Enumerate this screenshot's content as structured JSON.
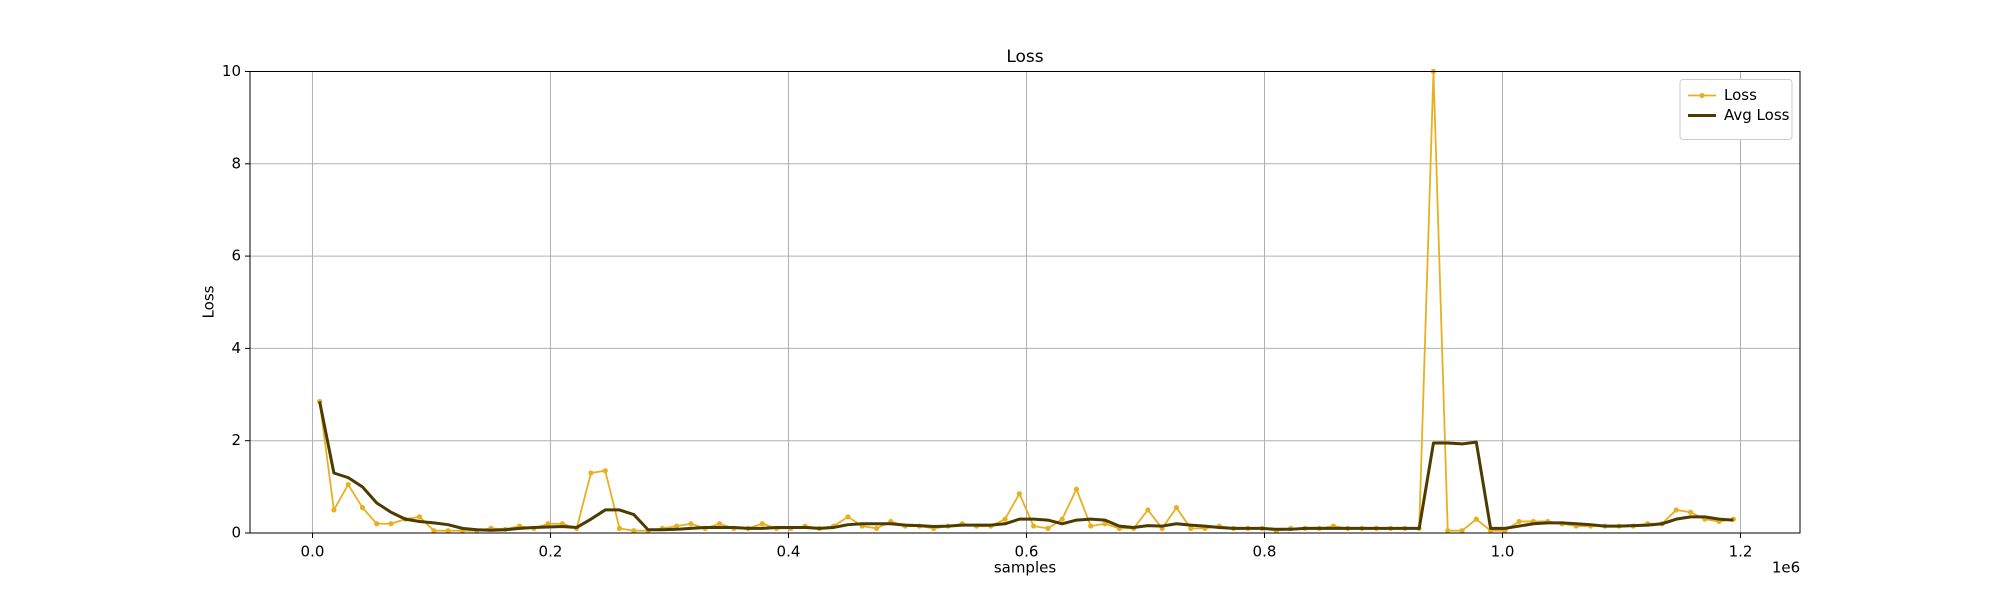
{
  "chart_data": {
    "type": "line",
    "title": "Loss",
    "x_label": "samples",
    "y_label": "Loss",
    "x_offset_label": "1e6",
    "x": [
      6000,
      18000,
      30000,
      42000,
      54000,
      66000,
      78000,
      90000,
      102000,
      114000,
      126000,
      138000,
      150000,
      162000,
      174000,
      186000,
      198000,
      210000,
      222000,
      234000,
      246000,
      258000,
      270000,
      282000,
      294000,
      306000,
      318000,
      330000,
      342000,
      354000,
      366000,
      378000,
      390000,
      402000,
      414000,
      426000,
      438000,
      450000,
      462000,
      474000,
      486000,
      498000,
      510000,
      522000,
      534000,
      546000,
      558000,
      570000,
      582000,
      594000,
      606000,
      618000,
      630000,
      642000,
      654000,
      666000,
      678000,
      690000,
      702000,
      714000,
      726000,
      738000,
      750000,
      762000,
      774000,
      786000,
      798000,
      810000,
      822000,
      834000,
      846000,
      858000,
      870000,
      882000,
      894000,
      906000,
      918000,
      930000,
      942000,
      954000,
      966000,
      978000,
      990000,
      1002000,
      1014000,
      1026000,
      1038000,
      1050000,
      1062000,
      1074000,
      1086000,
      1098000,
      1110000,
      1122000,
      1134000,
      1146000,
      1158000,
      1170000,
      1182000,
      1194000
    ],
    "series": [
      {
        "name": "Loss",
        "color": "#e8b020",
        "marker": true,
        "values": [
          2.85,
          0.5,
          1.05,
          0.55,
          0.2,
          0.2,
          0.3,
          0.35,
          0.05,
          0.05,
          0.05,
          0.05,
          0.1,
          0.08,
          0.15,
          0.1,
          0.2,
          0.2,
          0.1,
          1.3,
          1.35,
          0.1,
          0.05,
          0.05,
          0.1,
          0.15,
          0.2,
          0.1,
          0.2,
          0.1,
          0.1,
          0.2,
          0.1,
          0.1,
          0.15,
          0.1,
          0.15,
          0.35,
          0.15,
          0.1,
          0.25,
          0.15,
          0.15,
          0.1,
          0.15,
          0.2,
          0.15,
          0.15,
          0.3,
          0.85,
          0.15,
          0.1,
          0.3,
          0.95,
          0.15,
          0.2,
          0.1,
          0.1,
          0.5,
          0.1,
          0.55,
          0.1,
          0.1,
          0.15,
          0.1,
          0.1,
          0.1,
          0.05,
          0.1,
          0.1,
          0.1,
          0.15,
          0.1,
          0.1,
          0.1,
          0.1,
          0.1,
          0.1,
          10,
          0.05,
          0.05,
          0.3,
          0.05,
          0.05,
          0.25,
          0.25,
          0.25,
          0.2,
          0.15,
          0.15,
          0.15,
          0.15,
          0.15,
          0.2,
          0.2,
          0.5,
          0.45,
          0.3,
          0.25,
          0.3
        ]
      },
      {
        "name": "Avg Loss",
        "color": "#4d3b00",
        "marker": false,
        "values": [
          2.85,
          1.3,
          1.2,
          1.0,
          0.65,
          0.45,
          0.3,
          0.25,
          0.22,
          0.18,
          0.1,
          0.07,
          0.06,
          0.07,
          0.1,
          0.12,
          0.13,
          0.14,
          0.12,
          0.3,
          0.5,
          0.5,
          0.4,
          0.07,
          0.07,
          0.08,
          0.1,
          0.12,
          0.12,
          0.12,
          0.1,
          0.1,
          0.12,
          0.12,
          0.12,
          0.1,
          0.12,
          0.18,
          0.2,
          0.2,
          0.2,
          0.17,
          0.16,
          0.14,
          0.15,
          0.17,
          0.17,
          0.17,
          0.2,
          0.3,
          0.3,
          0.28,
          0.2,
          0.28,
          0.3,
          0.28,
          0.15,
          0.12,
          0.16,
          0.15,
          0.2,
          0.17,
          0.15,
          0.12,
          0.1,
          0.1,
          0.1,
          0.08,
          0.08,
          0.1,
          0.1,
          0.1,
          0.1,
          0.1,
          0.1,
          0.1,
          0.1,
          0.1,
          1.95,
          1.95,
          1.93,
          1.97,
          0.1,
          0.1,
          0.15,
          0.2,
          0.22,
          0.22,
          0.2,
          0.18,
          0.15,
          0.15,
          0.16,
          0.17,
          0.2,
          0.3,
          0.35,
          0.35,
          0.3,
          0.28
        ]
      }
    ],
    "xlim": [
      -52500,
      1250000
    ],
    "xticks": [
      {
        "value": 0,
        "label": "0.0"
      },
      {
        "value": 200000,
        "label": "0.2"
      },
      {
        "value": 400000,
        "label": "0.4"
      },
      {
        "value": 600000,
        "label": "0.6"
      },
      {
        "value": 800000,
        "label": "0.8"
      },
      {
        "value": 1000000,
        "label": "1.0"
      },
      {
        "value": 1200000,
        "label": "1.2"
      }
    ],
    "ylim": [
      0,
      10
    ],
    "yticks": [
      0,
      2,
      4,
      6,
      8,
      10
    ],
    "grid": true,
    "legend": "upper right"
  }
}
